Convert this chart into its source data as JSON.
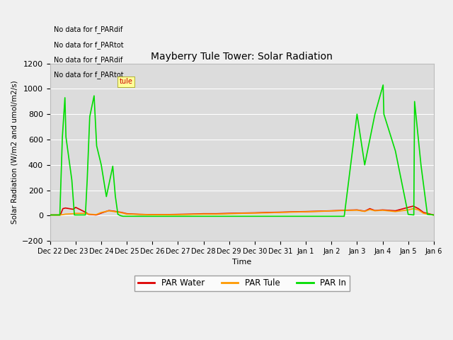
{
  "title": "Mayberry Tule Tower: Solar Radiation",
  "ylabel": "Solar Radiation (W/m2 and umol/m2/s)",
  "xlabel": "Time",
  "ylim": [
    -200,
    1200
  ],
  "yticks": [
    -200,
    0,
    200,
    400,
    600,
    800,
    1000,
    1200
  ],
  "xtick_labels": [
    "Dec 22",
    "Dec 23",
    "Dec 24",
    "Dec 25",
    "Dec 26",
    "Dec 27",
    "Dec 28",
    "Dec 29",
    "Dec 30",
    "Dec 31",
    "Jan 1",
    "Jan 2",
    "Jan 3",
    "Jan 4",
    "Jan 5",
    "Jan 6"
  ],
  "no_data_texts": [
    "No data for f_PARdif",
    "No data for f_PARtot",
    "No data for f_PARdif",
    "No data for f_PARtot"
  ],
  "legend_entries": [
    "PAR Water",
    "PAR Tule",
    "PAR In"
  ],
  "legend_colors": [
    "#dd0000",
    "#ff9900",
    "#00dd00"
  ],
  "bg_color": "#dcdcdc",
  "grid_color": "#ffffff",
  "par_water_x": [
    0,
    0.4,
    0.5,
    0.6,
    0.9,
    1.0,
    1.4,
    1.5,
    1.8,
    2.0,
    2.3,
    2.5,
    2.8,
    3.0,
    3.5,
    4.0,
    4.5,
    5.0,
    5.5,
    6.0,
    6.5,
    7.0,
    7.5,
    8.0,
    8.5,
    9.0,
    9.5,
    10.0,
    10.5,
    11.0,
    11.5,
    12.0,
    12.3,
    12.5,
    12.7,
    13.0,
    13.5,
    14.0,
    14.2,
    14.4,
    14.6,
    15.0
  ],
  "par_water_y": [
    5,
    5,
    55,
    60,
    50,
    65,
    25,
    10,
    5,
    20,
    40,
    35,
    25,
    15,
    10,
    8,
    8,
    10,
    12,
    15,
    15,
    18,
    20,
    22,
    25,
    27,
    30,
    32,
    35,
    38,
    42,
    45,
    35,
    55,
    40,
    45,
    38,
    65,
    75,
    55,
    25,
    5
  ],
  "par_tule_x": [
    0,
    0.4,
    0.5,
    0.6,
    0.9,
    1.0,
    1.4,
    1.5,
    1.8,
    2.0,
    2.3,
    2.5,
    2.8,
    3.0,
    3.5,
    4.0,
    4.5,
    5.0,
    5.5,
    6.0,
    6.5,
    7.0,
    7.5,
    8.0,
    8.5,
    9.0,
    9.5,
    10.0,
    10.5,
    11.0,
    11.5,
    12.0,
    12.3,
    12.5,
    12.7,
    13.0,
    13.5,
    14.0,
    14.2,
    14.4,
    14.6,
    15.0
  ],
  "par_tule_y": [
    5,
    5,
    8,
    12,
    15,
    18,
    18,
    12,
    8,
    25,
    38,
    32,
    22,
    12,
    10,
    7,
    7,
    8,
    10,
    12,
    12,
    15,
    18,
    20,
    22,
    25,
    28,
    30,
    33,
    37,
    40,
    43,
    33,
    48,
    38,
    42,
    32,
    45,
    55,
    45,
    18,
    4
  ],
  "par_in_x": [
    0,
    0.38,
    0.48,
    0.58,
    0.62,
    0.85,
    0.95,
    1.38,
    1.45,
    1.55,
    1.72,
    1.82,
    2.0,
    2.2,
    2.45,
    2.55,
    2.65,
    2.75,
    2.85,
    3.0,
    3.5,
    4.0,
    4.5,
    5.0,
    5.5,
    6.0,
    6.5,
    7.0,
    7.5,
    8.0,
    8.5,
    9.0,
    9.5,
    10.0,
    10.5,
    11.0,
    11.5,
    12.0,
    12.3,
    12.7,
    13.02,
    13.05,
    13.5,
    14.0,
    14.22,
    14.25,
    14.5,
    14.75,
    15.0
  ],
  "par_in_y": [
    5,
    5,
    620,
    930,
    620,
    280,
    5,
    5,
    280,
    780,
    945,
    550,
    400,
    150,
    390,
    155,
    10,
    0,
    -5,
    -5,
    -5,
    -5,
    -5,
    -5,
    -5,
    -5,
    -5,
    -5,
    -5,
    -5,
    -5,
    -5,
    -5,
    -5,
    -5,
    -5,
    -5,
    800,
    400,
    800,
    1030,
    800,
    510,
    10,
    5,
    900,
    400,
    10,
    5
  ]
}
